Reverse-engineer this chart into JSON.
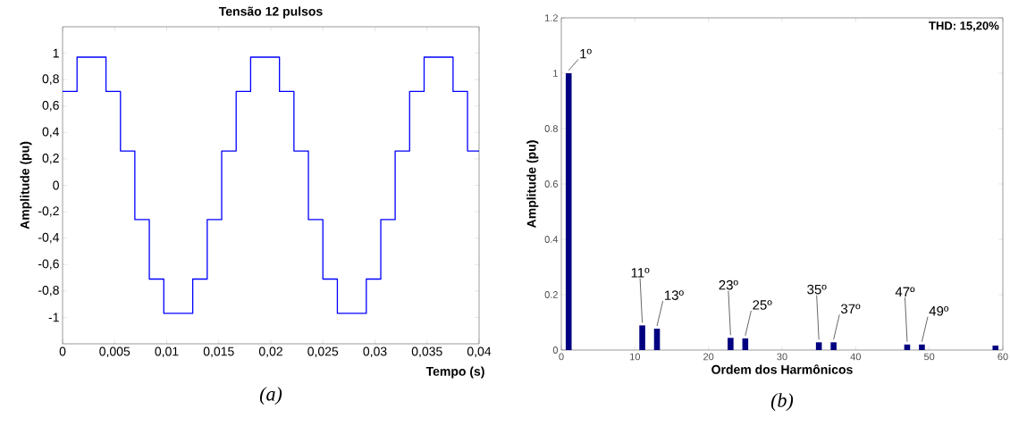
{
  "chart_data": [
    {
      "type": "step",
      "title": "Tensão 12 pulsos",
      "xlabel": "Tempo (s)",
      "ylabel": "Amplitude (pu)",
      "color": "#0000ff",
      "x": [
        0,
        0.00139,
        0.00417,
        0.00556,
        0.00694,
        0.00833,
        0.00972,
        0.0125,
        0.01389,
        0.01528,
        0.01667,
        0.01806,
        0.02083,
        0.02222,
        0.02361,
        0.025,
        0.02639,
        0.02917,
        0.03056,
        0.03194,
        0.03333,
        0.03472,
        0.0375,
        0.03889,
        0.04
      ],
      "values": [
        0.71,
        0.97,
        0.71,
        0.26,
        -0.26,
        -0.71,
        -0.97,
        -0.71,
        -0.26,
        0.26,
        0.71,
        0.97,
        0.71,
        0.26,
        -0.26,
        -0.71,
        -0.97,
        -0.71,
        -0.26,
        0.26,
        0.71,
        0.97,
        0.71,
        0.26,
        0.26
      ],
      "xlim": [
        0,
        0.04
      ],
      "ylim": [
        -1.2,
        1.2
      ],
      "xticks": [
        0,
        {
          "value": 0.005,
          "label": "0,005"
        },
        {
          "value": 0.01,
          "label": "0,01"
        },
        {
          "value": 0.015,
          "label": "0,015"
        },
        {
          "value": 0.02,
          "label": "0,02"
        },
        {
          "value": 0.025,
          "label": "0,025"
        },
        {
          "value": 0.03,
          "label": "0,03"
        },
        {
          "value": 0.035,
          "label": "0,035"
        },
        {
          "value": 0.04,
          "label": "0,04"
        }
      ],
      "yticks": [
        -1,
        {
          "value": -0.8,
          "label": "-0,8"
        },
        {
          "value": -0.6,
          "label": "-0,6"
        },
        {
          "value": -0.4,
          "label": "-0,4"
        },
        {
          "value": -0.2,
          "label": "-0,2"
        },
        0,
        {
          "value": 0.2,
          "label": "0,2"
        },
        {
          "value": 0.4,
          "label": "0,4"
        },
        {
          "value": 0.6,
          "label": "0,6"
        },
        {
          "value": 0.8,
          "label": "0,8"
        },
        1
      ],
      "annotations": [
        "(a)"
      ]
    },
    {
      "type": "bar",
      "xlabel": "Ordem dos Harmônicos",
      "ylabel": "Amplitude (pu)",
      "color": "#000080",
      "x": [
        1,
        11,
        13,
        23,
        25,
        35,
        37,
        47,
        49,
        59
      ],
      "values": [
        1.0,
        0.089,
        0.077,
        0.044,
        0.042,
        0.028,
        0.028,
        0.02,
        0.02,
        0.016
      ],
      "xlim": [
        0,
        60
      ],
      "ylim": [
        0,
        1.2
      ],
      "xticks": [
        0,
        10,
        20,
        30,
        40,
        50,
        60
      ],
      "yticks": [
        0,
        0.2,
        0.4,
        0.6,
        0.8,
        1,
        1.2
      ],
      "annotations": [
        {
          "text": "1º",
          "x": 1,
          "y": 1.0
        },
        {
          "text": "11º",
          "x": 11,
          "y": 0.089
        },
        {
          "text": "13º",
          "x": 13,
          "y": 0.077
        },
        {
          "text": "23º",
          "x": 23,
          "y": 0.044
        },
        {
          "text": "25º",
          "x": 25,
          "y": 0.042
        },
        {
          "text": "35º",
          "x": 35,
          "y": 0.028
        },
        {
          "text": "37º",
          "x": 37,
          "y": 0.028
        },
        {
          "text": "47º",
          "x": 47,
          "y": 0.02
        },
        {
          "text": "49º",
          "x": 49,
          "y": 0.02
        },
        "THD: 15,20%",
        "(b)"
      ]
    }
  ]
}
